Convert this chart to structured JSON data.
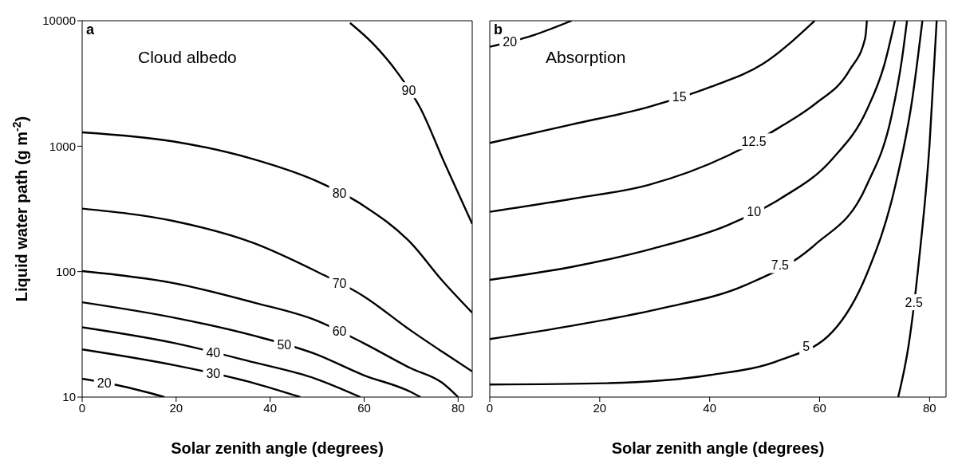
{
  "chart_data": [
    {
      "type": "line",
      "xlabel": "Solar zenith angle (degrees)",
      "ylabel": "Liquid water path (g m$^{-2}$)",
      "annotations": [
        "a",
        "Cloud albedo"
      ],
      "log": "y",
      "marker": "none",
      "line_style": "solid",
      "xlim": [
        0,
        83
      ],
      "xticks": [
        0,
        20,
        40,
        60,
        80
      ],
      "ylim": [
        10,
        10000
      ],
      "yticks": [
        10,
        100,
        1000,
        10000
      ],
      "series": [
        {
          "name": "90",
          "color": "#000000",
          "x": [
            57,
            62,
            67,
            72,
            77,
            83
          ],
          "values": [
            9600,
            6500,
            3900,
            2000,
            750,
            240
          ]
        },
        {
          "name": "80",
          "color": "#000000",
          "x": [
            0,
            19.5,
            36.3,
            49.7,
            59.8,
            69.9,
            76.6,
            83
          ],
          "values": [
            1290,
            1090,
            790,
            530,
            337,
            170,
            85,
            47
          ]
        },
        {
          "name": "70",
          "color": "#000000",
          "x": [
            0,
            19.5,
            36.3,
            49.7,
            59.8,
            69.9,
            76.6,
            83
          ],
          "values": [
            318,
            253,
            170,
            101,
            64,
            34,
            23,
            16
          ]
        },
        {
          "name": "60",
          "color": "#000000",
          "x": [
            0,
            19.5,
            36.3,
            49.7,
            59.8,
            69.9,
            76.6,
            80
          ],
          "values": [
            101,
            81,
            57,
            41,
            27,
            17,
            13,
            10
          ]
        },
        {
          "name": "50",
          "color": "#000000",
          "x": [
            0,
            19.5,
            36.3,
            49.7,
            59.8,
            69.9,
            72
          ],
          "values": [
            57,
            43,
            31,
            22,
            15,
            11,
            10
          ]
        },
        {
          "name": "40",
          "color": "#000000",
          "x": [
            0,
            19.5,
            36.3,
            49.7,
            59.2
          ],
          "values": [
            36,
            27,
            19,
            14,
            10
          ]
        },
        {
          "name": "30",
          "color": "#000000",
          "x": [
            0,
            19.5,
            36.3,
            46.4
          ],
          "values": [
            24,
            18,
            13,
            10
          ]
        },
        {
          "name": "20",
          "color": "#000000",
          "x": [
            0,
            9.4,
            17.5
          ],
          "values": [
            14,
            12,
            10
          ]
        }
      ]
    },
    {
      "type": "line",
      "xlabel": "Solar zenith angle (degrees)",
      "annotations": [
        "b",
        "Absorption"
      ],
      "log": "y",
      "marker": "none",
      "line_style": "solid",
      "tick_labels": "x",
      "xlim": [
        0,
        83
      ],
      "xticks": [
        0,
        20,
        40,
        60,
        80
      ],
      "ylim": [
        10,
        10000
      ],
      "yticks": [
        10,
        100,
        1000,
        10000
      ],
      "series": [
        {
          "name": "20",
          "color": "#000000",
          "x": [
            0,
            7.3,
            14.9
          ],
          "values": [
            6200,
            7500,
            10000
          ]
        },
        {
          "name": "15",
          "color": "#000000",
          "x": [
            0,
            14.9,
            28.8,
            40.2,
            49.7,
            59.1
          ],
          "values": [
            1060,
            1490,
            2050,
            2970,
            4530,
            10000
          ]
        },
        {
          "name": "12.5",
          "color": "#000000",
          "x": [
            0,
            14.9,
            28.8,
            43.3,
            52.8,
            59.1,
            65.5,
            68.3,
            68.6
          ],
          "values": [
            300,
            380,
            490,
            840,
            1420,
            2160,
            4070,
            7300,
            10000
          ]
        },
        {
          "name": "10",
          "color": "#000000",
          "x": [
            0,
            14.9,
            30,
            43.3,
            52.8,
            62.3,
            68.6,
            71.8,
            73.7
          ],
          "values": [
            86,
            109,
            154,
            235,
            380,
            790,
            1950,
            4500,
            10000
          ]
        },
        {
          "name": "7.5",
          "color": "#000000",
          "x": [
            0,
            14.9,
            31.3,
            46.5,
            59.1,
            68.6,
            73.1,
            75,
            75.9
          ],
          "values": [
            29,
            37,
            51,
            78,
            163,
            490,
            1750,
            5000,
            10000
          ]
        },
        {
          "name": "5",
          "color": "#000000",
          "x": [
            0,
            21.2,
            40.2,
            52.8,
            62.3,
            68.6,
            73.7,
            76.8,
            78.7
          ],
          "values": [
            12.6,
            12.9,
            15,
            19.7,
            33,
            96,
            470,
            2280,
            10000
          ]
        },
        {
          "name": "2.5",
          "color": "#000000",
          "x": [
            74.3,
            76.2,
            78.1,
            80,
            81.3
          ],
          "values": [
            10,
            26,
            125,
            1030,
            10000
          ]
        }
      ]
    }
  ]
}
